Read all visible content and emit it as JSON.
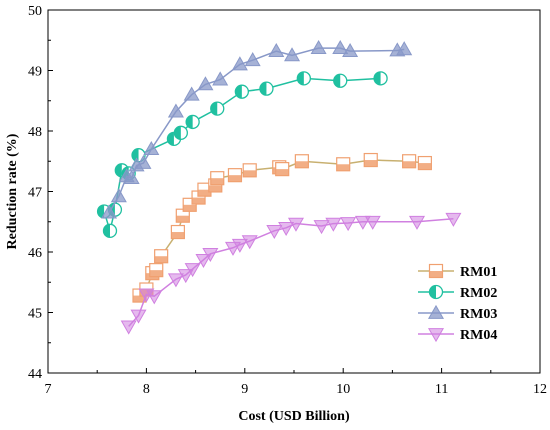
{
  "chart_data": {
    "type": "line",
    "xlabel": "Cost (USD Billion)",
    "ylabel": "Reduction rate (%)",
    "xlim": [
      7,
      12
    ],
    "ylim": [
      44,
      50
    ],
    "xticks": [
      "7",
      "8",
      "9",
      "10",
      "11",
      "12"
    ],
    "yticks": [
      "44",
      "45",
      "46",
      "47",
      "48",
      "49",
      "50"
    ],
    "grid": false,
    "legend_position": "bottom-right",
    "series": [
      {
        "name": "RM01",
        "color": "#F0A070",
        "line_color": "#C8B070",
        "marker": "square",
        "points": [
          [
            7.93,
            45.28
          ],
          [
            8.0,
            45.38
          ],
          [
            8.06,
            45.65
          ],
          [
            8.1,
            45.7
          ],
          [
            8.15,
            45.93
          ],
          [
            8.32,
            46.33
          ],
          [
            8.37,
            46.6
          ],
          [
            8.44,
            46.78
          ],
          [
            8.53,
            46.9
          ],
          [
            8.59,
            47.03
          ],
          [
            8.7,
            47.1
          ],
          [
            8.72,
            47.22
          ],
          [
            8.9,
            47.27
          ],
          [
            9.05,
            47.35
          ],
          [
            9.35,
            47.4
          ],
          [
            9.38,
            47.37
          ],
          [
            9.58,
            47.5
          ],
          [
            10.0,
            47.45
          ],
          [
            10.28,
            47.52
          ],
          [
            10.67,
            47.5
          ],
          [
            10.83,
            47.47
          ]
        ]
      },
      {
        "name": "RM02",
        "color": "#20C0A0",
        "line_color": "#20C0A0",
        "marker": "half-circle",
        "points": [
          [
            7.57,
            46.67
          ],
          [
            7.63,
            46.35
          ],
          [
            7.68,
            46.7
          ],
          [
            7.75,
            47.35
          ],
          [
            7.82,
            47.3
          ],
          [
            7.92,
            47.6
          ],
          [
            8.28,
            47.87
          ],
          [
            8.35,
            47.97
          ],
          [
            8.47,
            48.15
          ],
          [
            8.72,
            48.37
          ],
          [
            8.97,
            48.65
          ],
          [
            9.22,
            48.7
          ],
          [
            9.6,
            48.87
          ],
          [
            9.97,
            48.83
          ],
          [
            10.38,
            48.87
          ]
        ]
      },
      {
        "name": "RM03",
        "color": "#8898C8",
        "line_color": "#8898C8",
        "marker": "triangle-up",
        "points": [
          [
            7.62,
            46.65
          ],
          [
            7.72,
            46.92
          ],
          [
            7.8,
            47.25
          ],
          [
            7.85,
            47.22
          ],
          [
            7.9,
            47.43
          ],
          [
            7.97,
            47.47
          ],
          [
            8.05,
            47.7
          ],
          [
            8.3,
            48.32
          ],
          [
            8.46,
            48.6
          ],
          [
            8.6,
            48.77
          ],
          [
            8.75,
            48.85
          ],
          [
            8.95,
            49.1
          ],
          [
            9.08,
            49.17
          ],
          [
            9.32,
            49.32
          ],
          [
            9.48,
            49.25
          ],
          [
            9.75,
            49.37
          ],
          [
            9.97,
            49.37
          ],
          [
            10.07,
            49.32
          ],
          [
            10.55,
            49.33
          ],
          [
            10.62,
            49.35
          ]
        ]
      },
      {
        "name": "RM04",
        "color": "#D080E0",
        "line_color": "#D080E0",
        "marker": "triangle-down",
        "points": [
          [
            7.82,
            44.77
          ],
          [
            7.92,
            44.95
          ],
          [
            8.0,
            45.3
          ],
          [
            8.08,
            45.27
          ],
          [
            8.3,
            45.55
          ],
          [
            8.4,
            45.62
          ],
          [
            8.47,
            45.72
          ],
          [
            8.58,
            45.87
          ],
          [
            8.65,
            45.97
          ],
          [
            8.88,
            46.07
          ],
          [
            8.95,
            46.12
          ],
          [
            9.05,
            46.18
          ],
          [
            9.3,
            46.35
          ],
          [
            9.42,
            46.4
          ],
          [
            9.52,
            46.47
          ],
          [
            9.78,
            46.43
          ],
          [
            9.9,
            46.47
          ],
          [
            10.05,
            46.48
          ],
          [
            10.2,
            46.5
          ],
          [
            10.3,
            46.5
          ],
          [
            10.75,
            46.5
          ],
          [
            11.12,
            46.55
          ]
        ]
      }
    ]
  }
}
